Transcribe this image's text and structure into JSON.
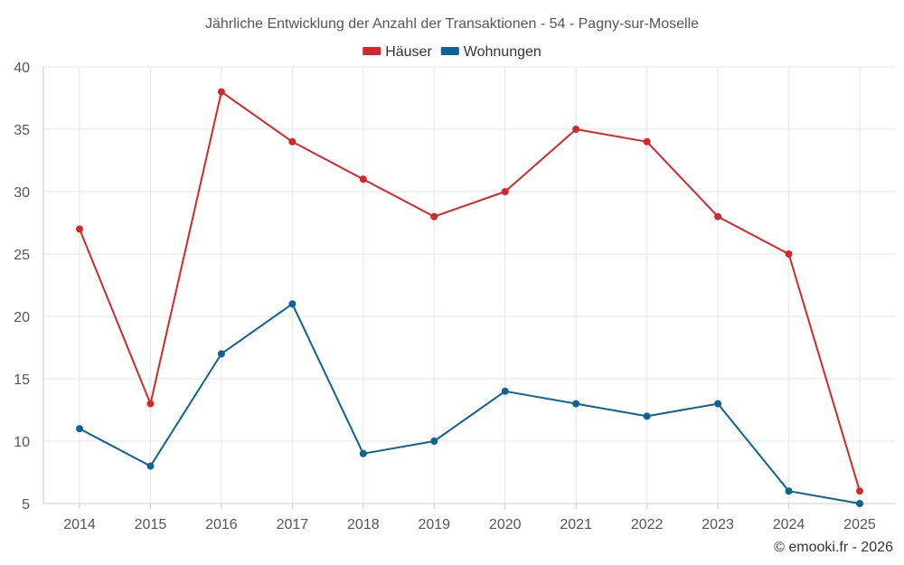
{
  "chart_data": {
    "type": "line",
    "title": "Jährliche Entwicklung der Anzahl der Transaktionen - 54 - Pagny-sur-Moselle",
    "categories": [
      "2014",
      "2015",
      "2016",
      "2017",
      "2018",
      "2019",
      "2020",
      "2021",
      "2022",
      "2023",
      "2024",
      "2025"
    ],
    "series": [
      {
        "name": "Häuser",
        "color": "#d62728",
        "values": [
          27,
          13,
          38,
          34,
          31,
          28,
          30,
          35,
          34,
          28,
          25,
          6
        ]
      },
      {
        "name": "Wohnungen",
        "color": "#0a6496",
        "values": [
          11,
          8,
          17,
          21,
          9,
          10,
          14,
          13,
          12,
          13,
          6,
          5
        ]
      }
    ],
    "y_ticks": [
      5,
      10,
      15,
      20,
      25,
      30,
      35,
      40
    ],
    "ylim": [
      5,
      40
    ],
    "grid": true,
    "legend_position": "top-center"
  },
  "credit": "© emooki.fr - 2026"
}
